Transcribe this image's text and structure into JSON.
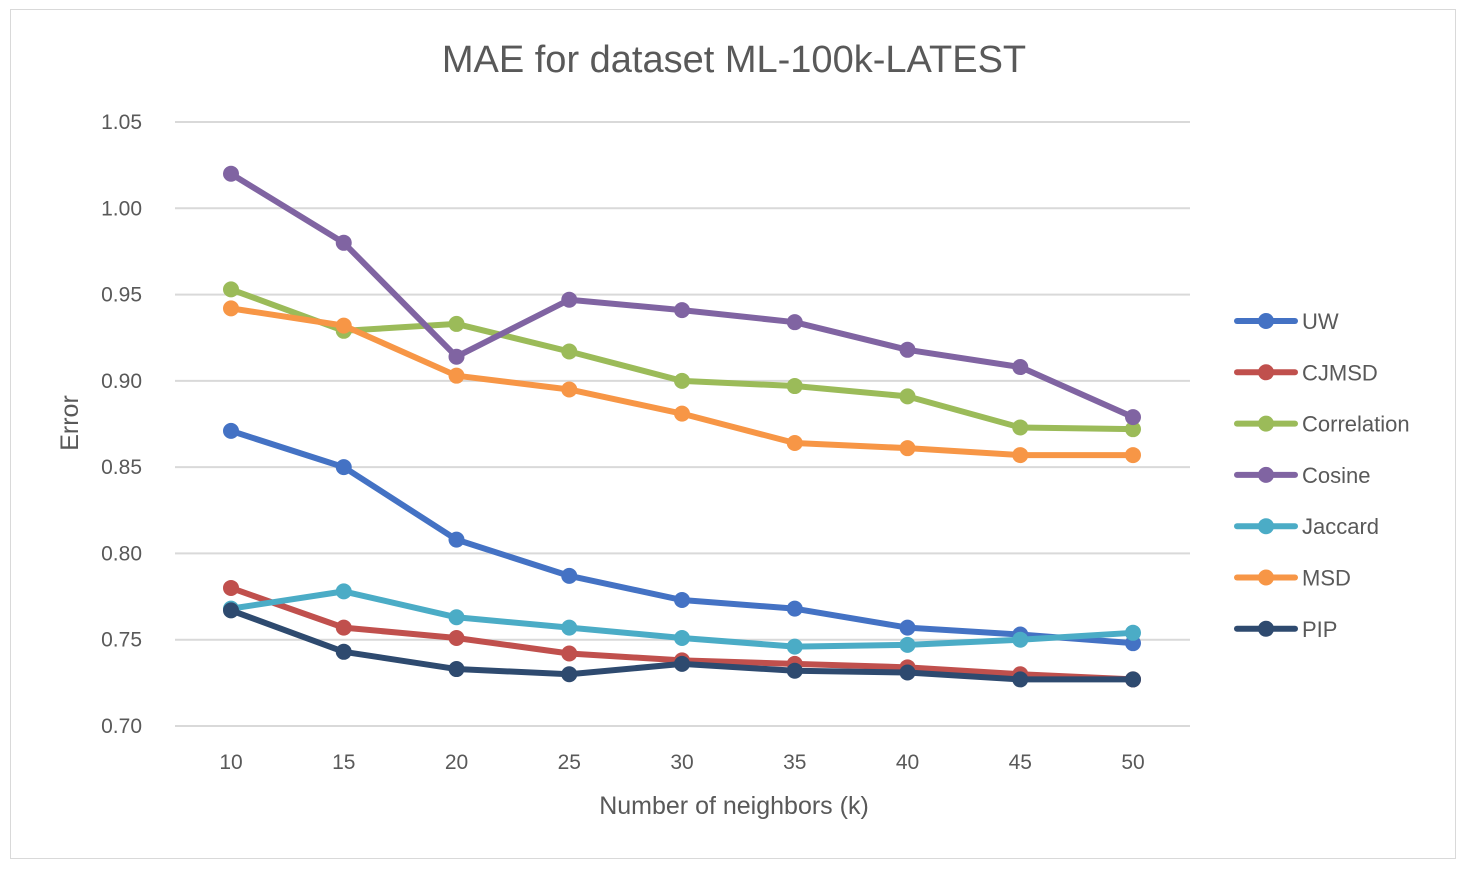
{
  "chart_data": {
    "type": "line",
    "title": "MAE for dataset ML-100k-LATEST",
    "xlabel": "Number of neighbors (k)",
    "ylabel": "Error",
    "x": [
      10,
      15,
      20,
      25,
      30,
      35,
      40,
      45,
      50
    ],
    "ylim": [
      0.7,
      1.05
    ],
    "yticks": [
      "0.70",
      "0.75",
      "0.80",
      "0.85",
      "0.90",
      "0.95",
      "1.00",
      "1.05"
    ],
    "grid": true,
    "legend_position": "right",
    "series": [
      {
        "name": "UW",
        "color": "#4472c4",
        "values": [
          0.871,
          0.85,
          0.808,
          0.787,
          0.773,
          0.768,
          0.757,
          0.753,
          0.748
        ]
      },
      {
        "name": "CJMSD",
        "color": "#c0504d",
        "values": [
          0.78,
          0.757,
          0.751,
          0.742,
          0.738,
          0.736,
          0.734,
          0.73,
          0.727
        ]
      },
      {
        "name": "Correlation",
        "color": "#9bbb59",
        "values": [
          0.953,
          0.929,
          0.933,
          0.917,
          0.9,
          0.897,
          0.891,
          0.873,
          0.872
        ]
      },
      {
        "name": "Cosine",
        "color": "#8064a2",
        "values": [
          1.02,
          0.98,
          0.914,
          0.947,
          0.941,
          0.934,
          0.918,
          0.908,
          0.879
        ]
      },
      {
        "name": "Jaccard",
        "color": "#4bacc6",
        "values": [
          0.768,
          0.778,
          0.763,
          0.757,
          0.751,
          0.746,
          0.747,
          0.75,
          0.754
        ]
      },
      {
        "name": "MSD",
        "color": "#f79646",
        "values": [
          0.942,
          0.932,
          0.903,
          0.895,
          0.881,
          0.864,
          0.861,
          0.857,
          0.857
        ]
      },
      {
        "name": "PIP",
        "color": "#2e4a6f",
        "values": [
          0.767,
          0.743,
          0.733,
          0.73,
          0.736,
          0.732,
          0.731,
          0.727,
          0.727
        ]
      }
    ]
  }
}
